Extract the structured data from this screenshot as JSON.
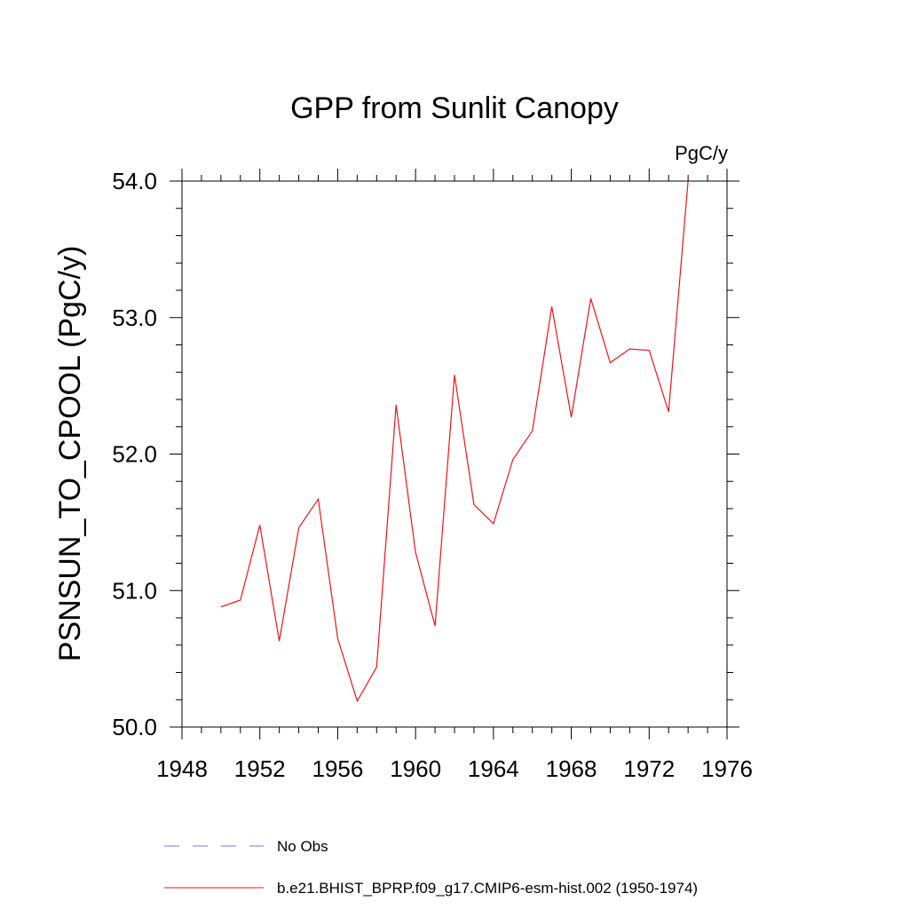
{
  "chart_data": {
    "type": "line",
    "title": "GPP from Sunlit Canopy",
    "units": "PgC/y",
    "ylabel": "PSNSUN_TO_CPOOL  (PgC/y)",
    "xlabel": "",
    "xlim": [
      1948,
      1976
    ],
    "ylim": [
      50.0,
      54.0
    ],
    "x_ticks": [
      "1948",
      "1952",
      "1956",
      "1960",
      "1964",
      "1968",
      "1972",
      "1976"
    ],
    "y_ticks": [
      "50.0",
      "51.0",
      "52.0",
      "53.0",
      "54.0"
    ],
    "grid": false,
    "legend_position": "bottom",
    "x": [
      1950,
      1951,
      1952,
      1953,
      1954,
      1955,
      1956,
      1957,
      1958,
      1959,
      1960,
      1961,
      1962,
      1963,
      1964,
      1965,
      1966,
      1967,
      1968,
      1969,
      1970,
      1971,
      1972,
      1973,
      1974
    ],
    "series": [
      {
        "name": "b.e21.BHIST_BPRP.f09_g17.CMIP6-esm-hist.002 (1950-1974)",
        "color": "#e8141c",
        "values": [
          50.88,
          50.93,
          51.48,
          50.63,
          51.46,
          51.67,
          50.65,
          50.19,
          50.44,
          52.36,
          51.28,
          50.74,
          52.58,
          51.63,
          51.49,
          51.96,
          52.17,
          53.08,
          52.27,
          53.14,
          52.67,
          52.77,
          52.76,
          52.31,
          54.0
        ]
      }
    ],
    "legend": [
      {
        "label": "No Obs",
        "color": "#7b78c8",
        "style": "dashed"
      },
      {
        "label": "b.e21.BHIST_BPRP.f09_g17.CMIP6-esm-hist.002 (1950-1974)",
        "color": "#e8141c",
        "style": "solid"
      }
    ]
  }
}
